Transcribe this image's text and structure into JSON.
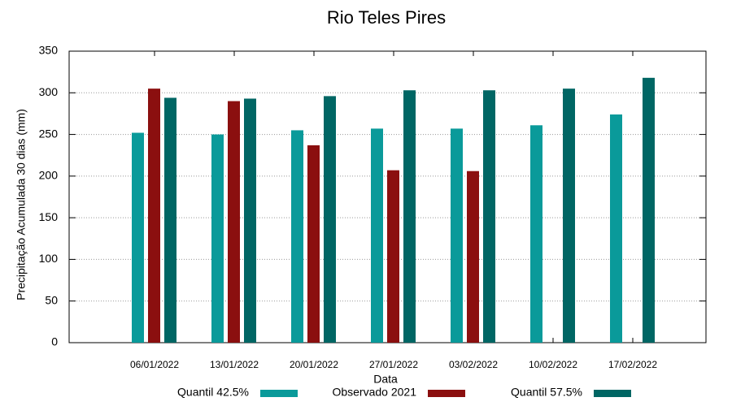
{
  "chart_data": {
    "type": "bar",
    "title": "Rio Teles Pires",
    "x_label": "Data",
    "y_label": "Precipitação Acumulada 30 dias (mm)",
    "categories": [
      "06/01/2022",
      "13/01/2022",
      "20/01/2022",
      "27/01/2022",
      "03/02/2022",
      "10/02/2022",
      "17/02/2022"
    ],
    "series": [
      {
        "name": "Quantil 42.5%",
        "color": "#0a9a9a",
        "values": [
          252,
          250,
          255,
          257,
          257,
          261,
          274
        ]
      },
      {
        "name": "Observado 2021",
        "color": "#8b0f0f",
        "values": [
          305,
          290,
          237,
          207,
          206,
          null,
          null
        ]
      },
      {
        "name": "Quantil 57.5%",
        "color": "#006664",
        "values": [
          294,
          293,
          296,
          303,
          303,
          305,
          318
        ]
      }
    ],
    "ylim": [
      0,
      350
    ],
    "yticks": [
      0,
      50,
      100,
      150,
      200,
      250,
      300,
      350
    ],
    "grid": true,
    "legend": "bottom"
  }
}
